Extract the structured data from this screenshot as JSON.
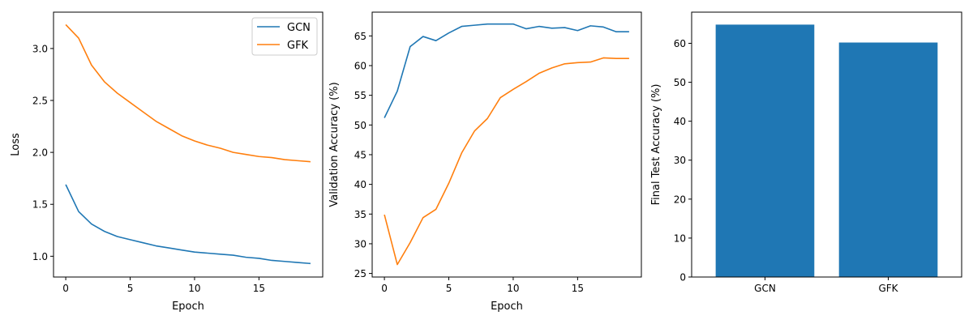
{
  "chart_data": [
    {
      "type": "line",
      "xlabel": "Epoch",
      "ylabel": "Loss",
      "xlim": [
        -0.95,
        19.95
      ],
      "ylim": [
        0.8,
        3.35
      ],
      "xticks": [
        0,
        5,
        10,
        15
      ],
      "yticks": [
        1.0,
        1.5,
        2.0,
        2.5,
        3.0
      ],
      "ytick_labels": [
        "1.0",
        "1.5",
        "2.0",
        "2.5",
        "3.0"
      ],
      "grid": false,
      "legend": "top-right",
      "x": [
        0,
        1,
        2,
        3,
        4,
        5,
        6,
        7,
        8,
        9,
        10,
        11,
        12,
        13,
        14,
        15,
        16,
        17,
        18,
        19
      ],
      "series": [
        {
          "name": "GCN",
          "color": "#1f77b4",
          "values": [
            1.69,
            1.43,
            1.31,
            1.24,
            1.19,
            1.16,
            1.13,
            1.1,
            1.08,
            1.06,
            1.04,
            1.03,
            1.02,
            1.01,
            0.99,
            0.98,
            0.96,
            0.95,
            0.94,
            0.93
          ]
        },
        {
          "name": "GFK",
          "color": "#ff7f0e",
          "values": [
            3.23,
            3.1,
            2.84,
            2.68,
            2.57,
            2.48,
            2.39,
            2.3,
            2.23,
            2.16,
            2.11,
            2.07,
            2.04,
            2.0,
            1.98,
            1.96,
            1.95,
            1.93,
            1.92,
            1.91
          ]
        }
      ]
    },
    {
      "type": "line",
      "xlabel": "Epoch",
      "ylabel": "Validation Accuracy (%)",
      "xlim": [
        -0.95,
        19.95
      ],
      "ylim": [
        24.4,
        69.0
      ],
      "xticks": [
        0,
        5,
        10,
        15
      ],
      "yticks": [
        25,
        30,
        35,
        40,
        45,
        50,
        55,
        60,
        65
      ],
      "ytick_labels": [
        "25",
        "30",
        "35",
        "40",
        "45",
        "50",
        "55",
        "60",
        "65"
      ],
      "grid": false,
      "x": [
        0,
        1,
        2,
        3,
        4,
        5,
        6,
        7,
        8,
        9,
        10,
        11,
        12,
        13,
        14,
        15,
        16,
        17,
        18,
        19
      ],
      "series": [
        {
          "color": "#1f77b4",
          "values": [
            51.2,
            55.7,
            63.2,
            64.9,
            64.2,
            65.5,
            66.6,
            66.8,
            67.0,
            67.0,
            67.0,
            66.2,
            66.6,
            66.3,
            66.4,
            65.9,
            66.7,
            66.5,
            65.7,
            65.7
          ]
        },
        {
          "color": "#ff7f0e",
          "values": [
            34.9,
            26.5,
            30.2,
            34.4,
            35.8,
            40.2,
            45.3,
            49.0,
            51.1,
            54.6,
            56.0,
            57.3,
            58.7,
            59.6,
            60.3,
            60.5,
            60.6,
            61.3,
            61.2,
            61.2
          ]
        }
      ]
    },
    {
      "type": "bar",
      "xlabel": "",
      "ylabel": "Final Test Accuracy (%)",
      "ylim": [
        0,
        68.0
      ],
      "yticks": [
        0,
        10,
        20,
        30,
        40,
        50,
        60
      ],
      "ytick_labels": [
        "0",
        "10",
        "20",
        "30",
        "40",
        "50",
        "60"
      ],
      "grid": false,
      "categories": [
        "GCN",
        "GFK"
      ],
      "values": [
        64.8,
        60.2
      ],
      "color": "#1f77b4"
    }
  ]
}
